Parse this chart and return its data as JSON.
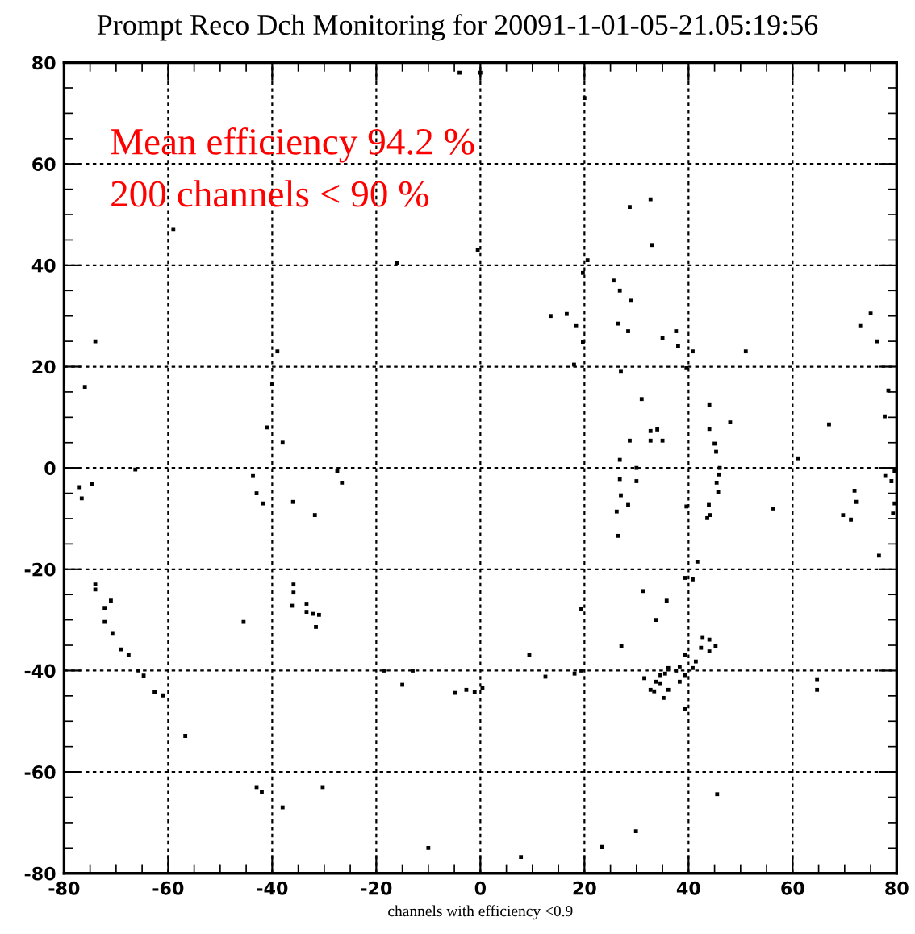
{
  "chart_data": {
    "type": "scatter",
    "title": "Prompt Reco Dch Monitoring for 20091-1-01-05-21.05:19:56",
    "xlabel": "channels with efficiency <0.9",
    "annotations": [
      "Mean efficiency 94.2 %",
      "200 channels < 90 %"
    ],
    "xlim": [
      -80,
      80
    ],
    "ylim": [
      -80,
      80
    ],
    "xticks": [
      -80,
      -60,
      -40,
      -20,
      0,
      20,
      40,
      60,
      80
    ],
    "yticks": [
      -80,
      -60,
      -40,
      -20,
      0,
      20,
      40,
      60,
      80
    ],
    "grid": true,
    "marker": "square",
    "series": [
      {
        "color": "#000000",
        "x": [
          -4,
          0,
          -59,
          -0.5,
          -16,
          -74,
          -39,
          -76,
          -40,
          -41,
          -38,
          20,
          28.7,
          32.7,
          33,
          20.6,
          19.7,
          25.6,
          26.8,
          29,
          13.5,
          16.6,
          18.4,
          19.7,
          26.5,
          28.4,
          35,
          37.6,
          38,
          40.8,
          39.6,
          18,
          51,
          73,
          75,
          76.2,
          27,
          31,
          32.7,
          34,
          28.7,
          32.7,
          35,
          26.8,
          44,
          44,
          48,
          45,
          45.3,
          61,
          67,
          78.4,
          77.7,
          -66.3,
          -77,
          -76.6,
          -74.7,
          -43.7,
          -43,
          -41.8,
          -36,
          -31.8,
          -27.5,
          -26.6,
          -74,
          -74,
          -72.2,
          -71,
          -72.2,
          -70.7,
          -69,
          -67.6,
          -65.7,
          -64.7,
          -62.6,
          -61,
          -45.5,
          -35.9,
          -35.9,
          -36.2,
          -33.4,
          -33.4,
          -32.2,
          -31,
          -31.6,
          -56.7,
          -18.5,
          -15,
          -13,
          -4.8,
          -2.7,
          -1.1,
          0.4,
          -43,
          -42,
          -38,
          -30.3,
          -10,
          30,
          26.8,
          30,
          27,
          28.4,
          26.2,
          39.6,
          26.5,
          46,
          45.8,
          45.4,
          45.7,
          43.9,
          44.2,
          43.6,
          56.3,
          71.9,
          72.2,
          69.7,
          71.2,
          77.8,
          79,
          79.6,
          79.6,
          79.3,
          76.6,
          41.7,
          39.3,
          40.8,
          31.2,
          35.8,
          33.7,
          19.4,
          27.1,
          42.7,
          44,
          42.4,
          44,
          45.2,
          9.4,
          39.3,
          41.4,
          40.8,
          38.3,
          37.6,
          36.1,
          35.5,
          34.6,
          33.7,
          32.7,
          31.5,
          34.6,
          38.3,
          39.3,
          33.4,
          35.2,
          36.1,
          39.3,
          12.5,
          18.1,
          19.4,
          64.7,
          64.7,
          45.5,
          29.9,
          23.4,
          7.8
        ],
        "values": [
          78,
          78,
          47,
          43,
          40.5,
          25,
          23,
          16,
          16.5,
          8,
          5,
          73,
          51.5,
          53,
          44,
          41,
          38.5,
          37,
          35,
          33,
          30,
          30.4,
          28,
          24.9,
          28.5,
          27,
          25.6,
          27,
          24,
          23,
          19.7,
          20.4,
          23,
          28,
          30.5,
          25,
          19,
          13.6,
          7.3,
          7.6,
          5.4,
          5.4,
          5.4,
          1.6,
          12.4,
          7.7,
          9,
          4.8,
          3.2,
          1.9,
          8.6,
          15.3,
          10.2,
          -0.3,
          -3.8,
          -6,
          -3.2,
          -1.6,
          -5,
          -7,
          -6.7,
          -9.3,
          -0.6,
          -2.9,
          -23,
          -24,
          -27.6,
          -26.2,
          -30.4,
          -32.6,
          -35.8,
          -36.9,
          -40,
          -41,
          -44.2,
          -44.9,
          -30.4,
          -23,
          -24.6,
          -27.2,
          -26.8,
          -28.4,
          -28.8,
          -29,
          -31.4,
          -52.9,
          -40,
          -42.8,
          -40,
          -44.4,
          -43.8,
          -44.2,
          -43.5,
          -63,
          -64,
          -67,
          -63,
          -75,
          0,
          -2.2,
          -2.6,
          -5.4,
          -7.3,
          -8.6,
          -7.6,
          -13.4,
          0,
          -1.3,
          -2.9,
          -4.8,
          -7.3,
          -9.3,
          -9.9,
          -8,
          -4.5,
          -6.7,
          -9.3,
          -10.2,
          -1.6,
          -2.6,
          -0.6,
          -7,
          -9,
          -17.3,
          -18.5,
          -21.7,
          -22,
          -24.3,
          -26.2,
          -30,
          -27.8,
          -35.2,
          -33.4,
          -33.9,
          -35.5,
          -36.2,
          -35.2,
          -36.9,
          -36.9,
          -38.2,
          -39.5,
          -39.2,
          -40,
          -39.5,
          -40.6,
          -40.9,
          -42.2,
          -43.8,
          -41.5,
          -42.5,
          -42.2,
          -40.9,
          -44.1,
          -45.4,
          -43.8,
          -47.5,
          -41.2,
          -40.6,
          -40,
          -41.7,
          -43.8,
          -64.4,
          -71.7,
          -74.8,
          -76.8
        ]
      }
    ]
  }
}
